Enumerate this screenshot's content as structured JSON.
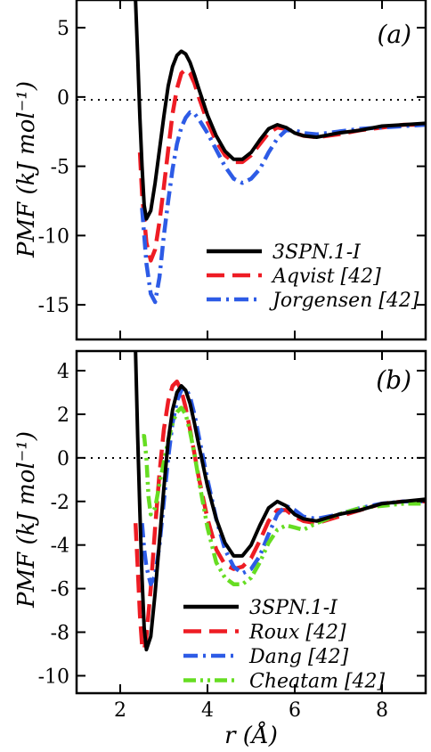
{
  "chart_data": [
    {
      "type": "line",
      "panel_label": "(a)",
      "ylabel": "PMF (kJ mol⁻¹)",
      "xlabel": "",
      "xlim": [
        1.0,
        9.0
      ],
      "ylim": [
        -17.5,
        7.0
      ],
      "yticks": [
        5,
        0,
        -5,
        -10,
        -15
      ],
      "ytick_labels": [
        "5",
        "0",
        "-5",
        "-10",
        "-15"
      ],
      "xticks": [
        2,
        4,
        6,
        8
      ],
      "xtick_labels": [
        "",
        "",
        "",
        ""
      ],
      "reference_line": 0,
      "grid": false,
      "legend_position": "bottom-right",
      "series": [
        {
          "name": "3SPN.1-I",
          "color": "#000000",
          "style": "solid",
          "x": [
            2.35,
            2.4,
            2.45,
            2.5,
            2.55,
            2.6,
            2.7,
            2.8,
            2.9,
            3.0,
            3.1,
            3.2,
            3.3,
            3.4,
            3.5,
            3.6,
            3.7,
            3.8,
            4.0,
            4.2,
            4.4,
            4.6,
            4.8,
            5.0,
            5.2,
            5.4,
            5.6,
            5.8,
            6.0,
            6.2,
            6.5,
            7.0,
            7.5,
            8.0,
            8.5,
            9.0
          ],
          "y": [
            7.0,
            3.0,
            -1.5,
            -5.0,
            -7.8,
            -8.8,
            -8.2,
            -6.2,
            -3.8,
            -1.4,
            0.8,
            2.2,
            3.0,
            3.3,
            3.1,
            2.5,
            1.6,
            0.6,
            -1.3,
            -2.8,
            -3.9,
            -4.5,
            -4.5,
            -4.0,
            -3.1,
            -2.3,
            -2.0,
            -2.2,
            -2.6,
            -2.8,
            -2.9,
            -2.6,
            -2.4,
            -2.1,
            -2.0,
            -1.9
          ]
        },
        {
          "name": "Aqvist [42]",
          "color": "#ee1c24",
          "style": "dashed",
          "x": [
            2.45,
            2.5,
            2.6,
            2.7,
            2.8,
            2.9,
            3.0,
            3.1,
            3.2,
            3.3,
            3.4,
            3.5,
            3.6,
            3.7,
            3.8,
            4.0,
            4.2,
            4.4,
            4.6,
            4.8,
            5.0,
            5.2,
            5.4,
            5.6,
            5.8,
            6.0,
            6.2,
            6.5,
            7.0,
            7.5,
            8.0,
            8.5,
            9.0
          ],
          "y": [
            -4.0,
            -7.0,
            -10.5,
            -11.8,
            -11.0,
            -9.0,
            -6.5,
            -3.8,
            -1.2,
            0.6,
            1.7,
            2.0,
            1.7,
            1.0,
            0.0,
            -1.8,
            -3.2,
            -4.2,
            -4.7,
            -4.7,
            -4.2,
            -3.4,
            -2.6,
            -2.2,
            -2.3,
            -2.6,
            -2.8,
            -2.9,
            -2.7,
            -2.4,
            -2.2,
            -2.0,
            -2.0
          ]
        },
        {
          "name": "Jorgensen [42]",
          "color": "#2d5be6",
          "style": "dashdot",
          "x": [
            2.5,
            2.6,
            2.7,
            2.8,
            2.9,
            3.0,
            3.1,
            3.2,
            3.3,
            3.4,
            3.5,
            3.6,
            3.7,
            3.8,
            3.9,
            4.0,
            4.2,
            4.4,
            4.6,
            4.8,
            5.0,
            5.2,
            5.4,
            5.6,
            5.8,
            6.0,
            6.2,
            6.5,
            7.0,
            7.5,
            8.0,
            8.5,
            9.0
          ],
          "y": [
            -8.0,
            -12.0,
            -14.2,
            -14.8,
            -13.0,
            -10.0,
            -7.5,
            -5.2,
            -3.4,
            -2.2,
            -1.5,
            -1.1,
            -1.2,
            -1.6,
            -2.1,
            -2.6,
            -3.8,
            -5.0,
            -5.9,
            -6.2,
            -5.9,
            -5.2,
            -4.0,
            -3.0,
            -2.4,
            -2.4,
            -2.6,
            -2.7,
            -2.5,
            -2.3,
            -2.2,
            -2.1,
            -2.0
          ]
        }
      ]
    },
    {
      "type": "line",
      "panel_label": "(b)",
      "ylabel": "PMF (kJ mol⁻¹)",
      "xlabel": "r (Å)",
      "xlim": [
        1.0,
        9.0
      ],
      "ylim": [
        -10.8,
        4.9
      ],
      "yticks": [
        4,
        2,
        0,
        -2,
        -4,
        -6,
        -8,
        -10
      ],
      "ytick_labels": [
        "4",
        "2",
        "0",
        "-2",
        "-4",
        "-6",
        "-8",
        "-10"
      ],
      "xticks": [
        2,
        4,
        6,
        8
      ],
      "xtick_labels": [
        "2",
        "4",
        "6",
        "8"
      ],
      "reference_line": 0,
      "grid": false,
      "legend_position": "bottom-right",
      "series": [
        {
          "name": "3SPN.1-I",
          "color": "#000000",
          "style": "solid",
          "x": [
            2.35,
            2.4,
            2.45,
            2.5,
            2.55,
            2.6,
            2.7,
            2.8,
            2.9,
            3.0,
            3.1,
            3.2,
            3.3,
            3.4,
            3.5,
            3.6,
            3.7,
            3.8,
            4.0,
            4.2,
            4.4,
            4.6,
            4.8,
            5.0,
            5.2,
            5.4,
            5.6,
            5.8,
            6.0,
            6.2,
            6.5,
            7.0,
            7.5,
            8.0,
            8.5,
            9.0
          ],
          "y": [
            4.9,
            1.0,
            -2.5,
            -5.5,
            -7.8,
            -8.8,
            -8.2,
            -6.2,
            -3.8,
            -1.4,
            0.8,
            2.2,
            3.0,
            3.3,
            3.1,
            2.5,
            1.6,
            0.6,
            -1.3,
            -2.8,
            -3.9,
            -4.5,
            -4.5,
            -4.0,
            -3.1,
            -2.3,
            -2.0,
            -2.2,
            -2.6,
            -2.8,
            -2.9,
            -2.6,
            -2.4,
            -2.1,
            -2.0,
            -1.9
          ]
        },
        {
          "name": "Roux [42]",
          "color": "#ee1c24",
          "style": "dashed",
          "x": [
            2.35,
            2.4,
            2.45,
            2.5,
            2.55,
            2.6,
            2.7,
            2.8,
            2.9,
            3.0,
            3.1,
            3.2,
            3.3,
            3.4,
            3.5,
            3.6,
            3.7,
            3.8,
            4.0,
            4.2,
            4.4,
            4.6,
            4.8,
            5.0,
            5.2,
            5.4,
            5.6,
            5.8,
            6.0,
            6.2,
            6.5,
            7.0,
            7.5,
            8.0,
            8.5,
            9.0
          ],
          "y": [
            -3.0,
            -5.0,
            -7.2,
            -8.6,
            -8.8,
            -8.2,
            -6.0,
            -3.2,
            -0.7,
            1.3,
            2.6,
            3.3,
            3.5,
            3.1,
            2.3,
            1.3,
            0.2,
            -0.9,
            -2.8,
            -4.2,
            -4.9,
            -5.1,
            -5.0,
            -4.6,
            -3.8,
            -2.9,
            -2.4,
            -2.4,
            -2.7,
            -2.9,
            -3.0,
            -2.7,
            -2.4,
            -2.1,
            -2.0,
            -2.0
          ]
        },
        {
          "name": "Dang [42]",
          "color": "#2d5be6",
          "style": "dashdot",
          "x": [
            2.5,
            2.55,
            2.6,
            2.7,
            2.8,
            2.9,
            3.0,
            3.1,
            3.2,
            3.3,
            3.4,
            3.5,
            3.6,
            3.7,
            3.8,
            3.9,
            4.0,
            4.2,
            4.4,
            4.6,
            4.8,
            5.0,
            5.2,
            5.4,
            5.6,
            5.8,
            6.0,
            6.2,
            6.5,
            7.0,
            7.5,
            8.0,
            8.5,
            9.0
          ],
          "y": [
            -3.0,
            -4.2,
            -5.0,
            -5.8,
            -5.4,
            -4.0,
            -2.0,
            0.0,
            1.6,
            2.6,
            3.1,
            3.2,
            2.8,
            2.0,
            1.0,
            0.0,
            -1.0,
            -2.8,
            -4.2,
            -5.0,
            -5.3,
            -5.1,
            -4.5,
            -3.5,
            -2.6,
            -2.2,
            -2.4,
            -2.7,
            -2.8,
            -2.6,
            -2.3,
            -2.1,
            -2.0,
            -2.0
          ]
        },
        {
          "name": "Cheatam [42]",
          "color": "#66dd22",
          "style": "dashdotdot",
          "x": [
            2.5,
            2.55,
            2.6,
            2.65,
            2.7,
            2.8,
            2.9,
            3.0,
            3.1,
            3.2,
            3.3,
            3.4,
            3.5,
            3.6,
            3.7,
            3.8,
            4.0,
            4.2,
            4.4,
            4.6,
            4.8,
            5.0,
            5.2,
            5.4,
            5.6,
            5.8,
            6.0,
            6.2,
            6.5,
            7.0,
            7.5,
            8.0,
            8.5,
            9.0
          ],
          "y": [
            1.0,
            1.0,
            0.0,
            -1.8,
            -2.6,
            -2.3,
            -1.2,
            -0.2,
            0.8,
            1.6,
            2.1,
            2.3,
            2.0,
            1.2,
            0.2,
            -1.0,
            -3.2,
            -4.8,
            -5.5,
            -5.8,
            -5.8,
            -5.5,
            -4.8,
            -3.9,
            -3.3,
            -3.1,
            -3.2,
            -3.3,
            -3.0,
            -2.6,
            -2.3,
            -2.2,
            -2.1,
            -2.1
          ]
        }
      ]
    }
  ]
}
